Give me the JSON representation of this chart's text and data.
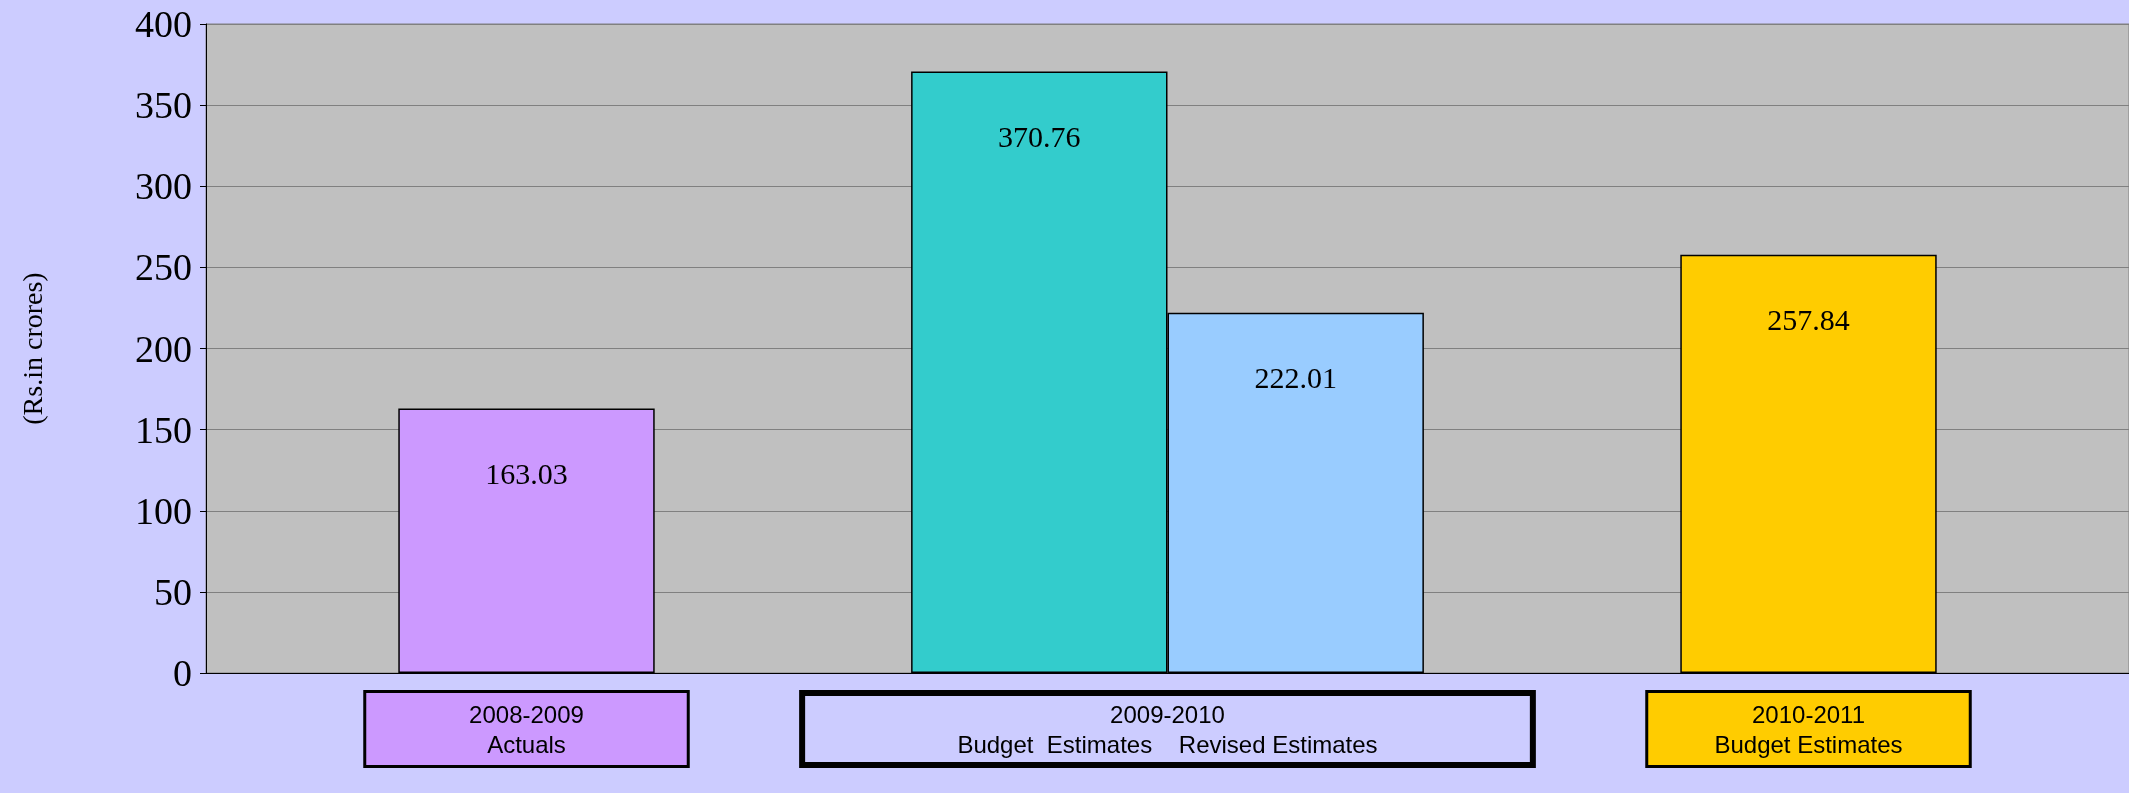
{
  "chart_data": {
    "type": "bar",
    "ylabel": "(Rs.in crores)",
    "categories": [
      "2008-2009\nActuals",
      "2009-2010\nBudget  Estimates    Revised Estimates",
      "2010-2011\nBudget Estimates"
    ],
    "series": [
      {
        "values": [
          163.03,
          370.76,
          257.84
        ],
        "colors": [
          "#cc99ff",
          "#33cccc",
          "#ffcc00"
        ]
      },
      {
        "values": [
          null,
          222.01,
          null
        ],
        "colors": [
          null,
          "#99ccff",
          null
        ]
      }
    ],
    "ylim": [
      0,
      400
    ],
    "yticks": [
      0,
      50,
      100,
      150,
      200,
      250,
      300,
      350,
      400
    ],
    "grid": "y",
    "data_labels": true
  }
}
